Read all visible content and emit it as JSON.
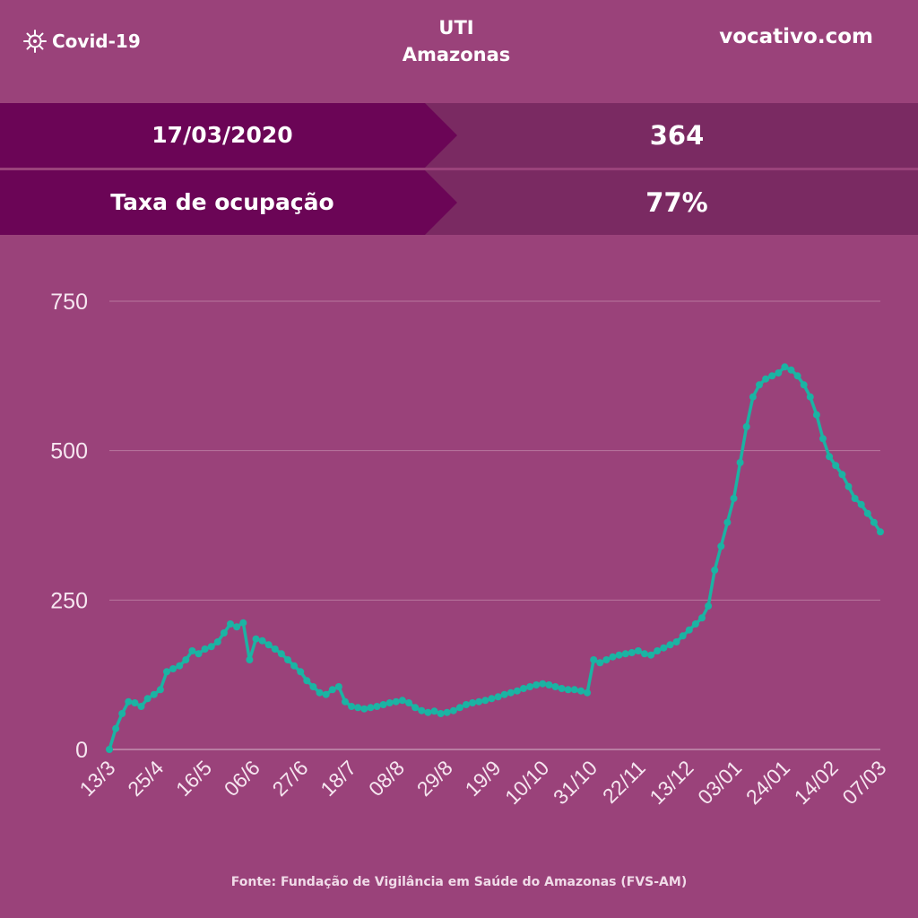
{
  "header": {
    "brand": "Covid-19",
    "brand_icon": "virus-icon",
    "title_line1": "UTI",
    "title_line2": "Amazonas",
    "site": "vocativo.com"
  },
  "stats": [
    {
      "label": "17/03/2020",
      "value": "364"
    },
    {
      "label": "Taxa de ocupação",
      "value": "77%"
    }
  ],
  "footer": "Fonte: Fundação de Vigilância em Saúde do Amazonas (FVS-AM)",
  "colors": {
    "background": "#9a427a",
    "line": "#1bb3a3",
    "band_left": "#6b0556",
    "band_right": "#7a2a62"
  },
  "chart_data": {
    "type": "line",
    "title": "",
    "xlabel": "",
    "ylabel": "",
    "ylim": [
      0,
      750
    ],
    "yticks": [
      "0",
      "250",
      "500",
      "750"
    ],
    "xticks": [
      "13/3",
      "25/4",
      "16/5",
      "06/6",
      "27/6",
      "18/7",
      "08/8",
      "29/8",
      "19/9",
      "10/10",
      "31/10",
      "22/11",
      "13/12",
      "03/01",
      "24/01",
      "14/02",
      "07/03"
    ],
    "grid": true,
    "legend": "none",
    "series": [
      {
        "values": [
          0,
          35,
          60,
          80,
          78,
          72,
          85,
          92,
          100,
          130,
          135,
          140,
          150,
          165,
          160,
          168,
          172,
          180,
          195,
          210,
          205,
          212,
          150,
          185,
          182,
          175,
          168,
          160,
          150,
          140,
          130,
          115,
          105,
          95,
          92,
          100,
          105,
          80,
          72,
          70,
          68,
          70,
          72,
          75,
          78,
          80,
          82,
          78,
          70,
          65,
          62,
          64,
          60,
          62,
          65,
          70,
          75,
          78,
          80,
          82,
          85,
          88,
          92,
          95,
          98,
          102,
          105,
          108,
          110,
          108,
          105,
          102,
          100,
          100,
          98,
          95,
          150,
          145,
          150,
          155,
          158,
          160,
          162,
          165,
          160,
          158,
          165,
          170,
          175,
          180,
          190,
          200,
          210,
          220,
          240,
          300,
          340,
          380,
          420,
          480,
          540,
          590,
          610,
          620,
          625,
          630,
          640,
          635,
          625,
          610,
          590,
          560,
          520,
          490,
          475,
          460,
          440,
          420,
          410,
          395,
          380,
          364
        ]
      }
    ]
  }
}
